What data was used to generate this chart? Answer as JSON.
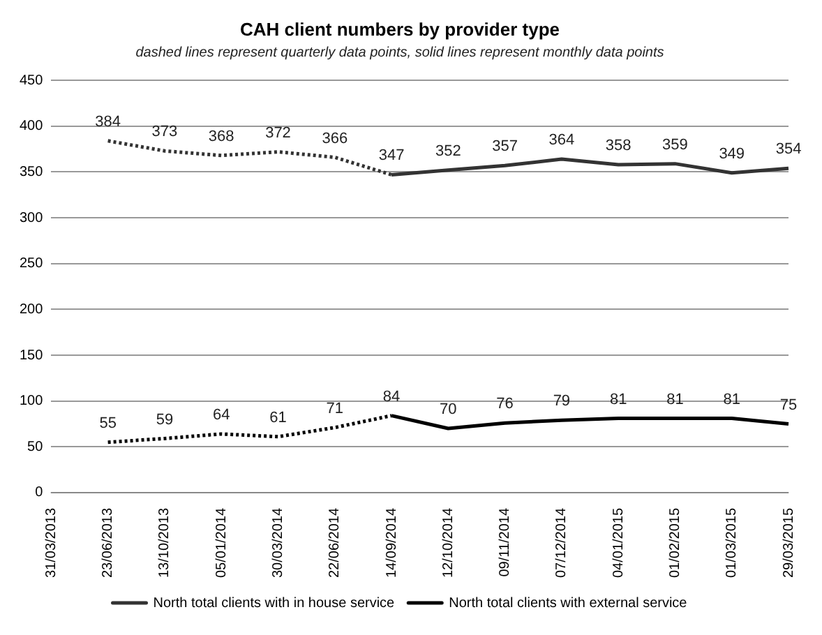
{
  "chart_data": {
    "type": "line",
    "title": "CAH client numbers by provider type",
    "subtitle": "dashed lines represent quarterly data points, solid lines represent monthly data points",
    "categories": [
      "31/03/2013",
      "23/06/2013",
      "13/10/2013",
      "05/01/2014",
      "30/03/2014",
      "22/06/2014",
      "14/09/2014",
      "12/10/2014",
      "09/11/2014",
      "07/12/2014",
      "04/01/2015",
      "01/02/2015",
      "01/03/2015",
      "29/03/2015"
    ],
    "series": [
      {
        "color": "#333333",
        "line_style": "dotted",
        "values": [
          null,
          384,
          373,
          368,
          372,
          366,
          347,
          null,
          null,
          null,
          null,
          null,
          null,
          null
        ],
        "value_labels": [
          null,
          "384",
          "373",
          "368",
          "372",
          "366",
          null,
          null,
          null,
          null,
          null,
          null,
          null,
          null
        ]
      },
      {
        "name": "North total clients with in house service",
        "color": "#333333",
        "line_style": "solid",
        "values": [
          null,
          null,
          null,
          null,
          null,
          null,
          347,
          352,
          357,
          364,
          358,
          359,
          349,
          354
        ],
        "value_labels": [
          null,
          null,
          null,
          null,
          null,
          null,
          "347",
          "352",
          "357",
          "364",
          "358",
          "359",
          "349",
          "354"
        ]
      },
      {
        "color": "#000000",
        "line_style": "dotted",
        "values": [
          null,
          55,
          59,
          64,
          61,
          71,
          84,
          null,
          null,
          null,
          null,
          null,
          null,
          null
        ],
        "value_labels": [
          null,
          "55",
          "59",
          "64",
          "61",
          "71",
          null,
          null,
          null,
          null,
          null,
          null,
          null,
          null
        ]
      },
      {
        "name": "North total clients with external service",
        "color": "#000000",
        "line_style": "solid",
        "values": [
          null,
          null,
          null,
          null,
          null,
          null,
          84,
          70,
          76,
          79,
          81,
          81,
          81,
          75
        ],
        "value_labels": [
          null,
          null,
          null,
          null,
          null,
          null,
          "84",
          "70",
          "76",
          "79",
          "81",
          "81",
          "81",
          "75"
        ]
      }
    ],
    "ylim": [
      0,
      450
    ],
    "yticks": [
      0,
      50,
      100,
      150,
      200,
      250,
      300,
      350,
      400,
      450
    ],
    "grid": "y",
    "legend": "bottom",
    "marker": "none"
  }
}
